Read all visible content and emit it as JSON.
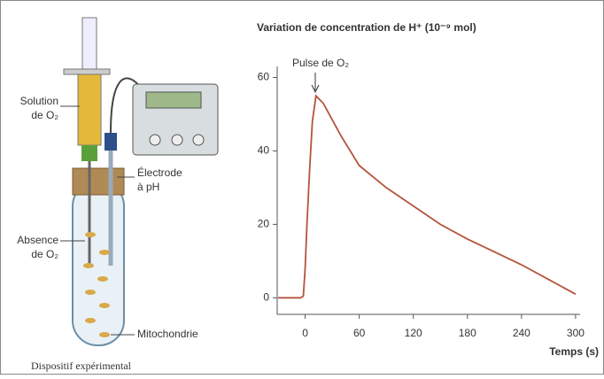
{
  "chart_data": {
    "type": "line",
    "title": "Variation de concentration de H⁺ (10⁻⁹ mol)",
    "x_label": "Temps (s)",
    "annotations": [
      "Pulse de O₂"
    ],
    "x": [
      -30,
      -5,
      -2,
      0,
      2,
      5,
      8,
      12,
      20,
      40,
      60,
      90,
      120,
      150,
      180,
      210,
      240,
      270,
      300
    ],
    "series": [
      {
        "name": "H⁺",
        "color": "#b5533c",
        "values": [
          0,
          0,
          0.5,
          8,
          20,
          35,
          48,
          55,
          53,
          44,
          36,
          30,
          25,
          20,
          16,
          12.5,
          9,
          5,
          1
        ]
      }
    ],
    "xlim": [
      -31,
      305
    ],
    "xticks": [
      0,
      60,
      120,
      180,
      240,
      300
    ],
    "ylim": [
      -4.5,
      63
    ],
    "yticks": [
      0,
      20,
      40,
      60
    ]
  },
  "figure": {
    "labels": [
      [
        "Solution",
        "de O₂"
      ],
      [
        "Électrode",
        "à pH"
      ],
      [
        "Absence",
        "de O₂"
      ],
      [
        "Mitochondrie"
      ]
    ],
    "caption": "Dispositif expérimental"
  }
}
